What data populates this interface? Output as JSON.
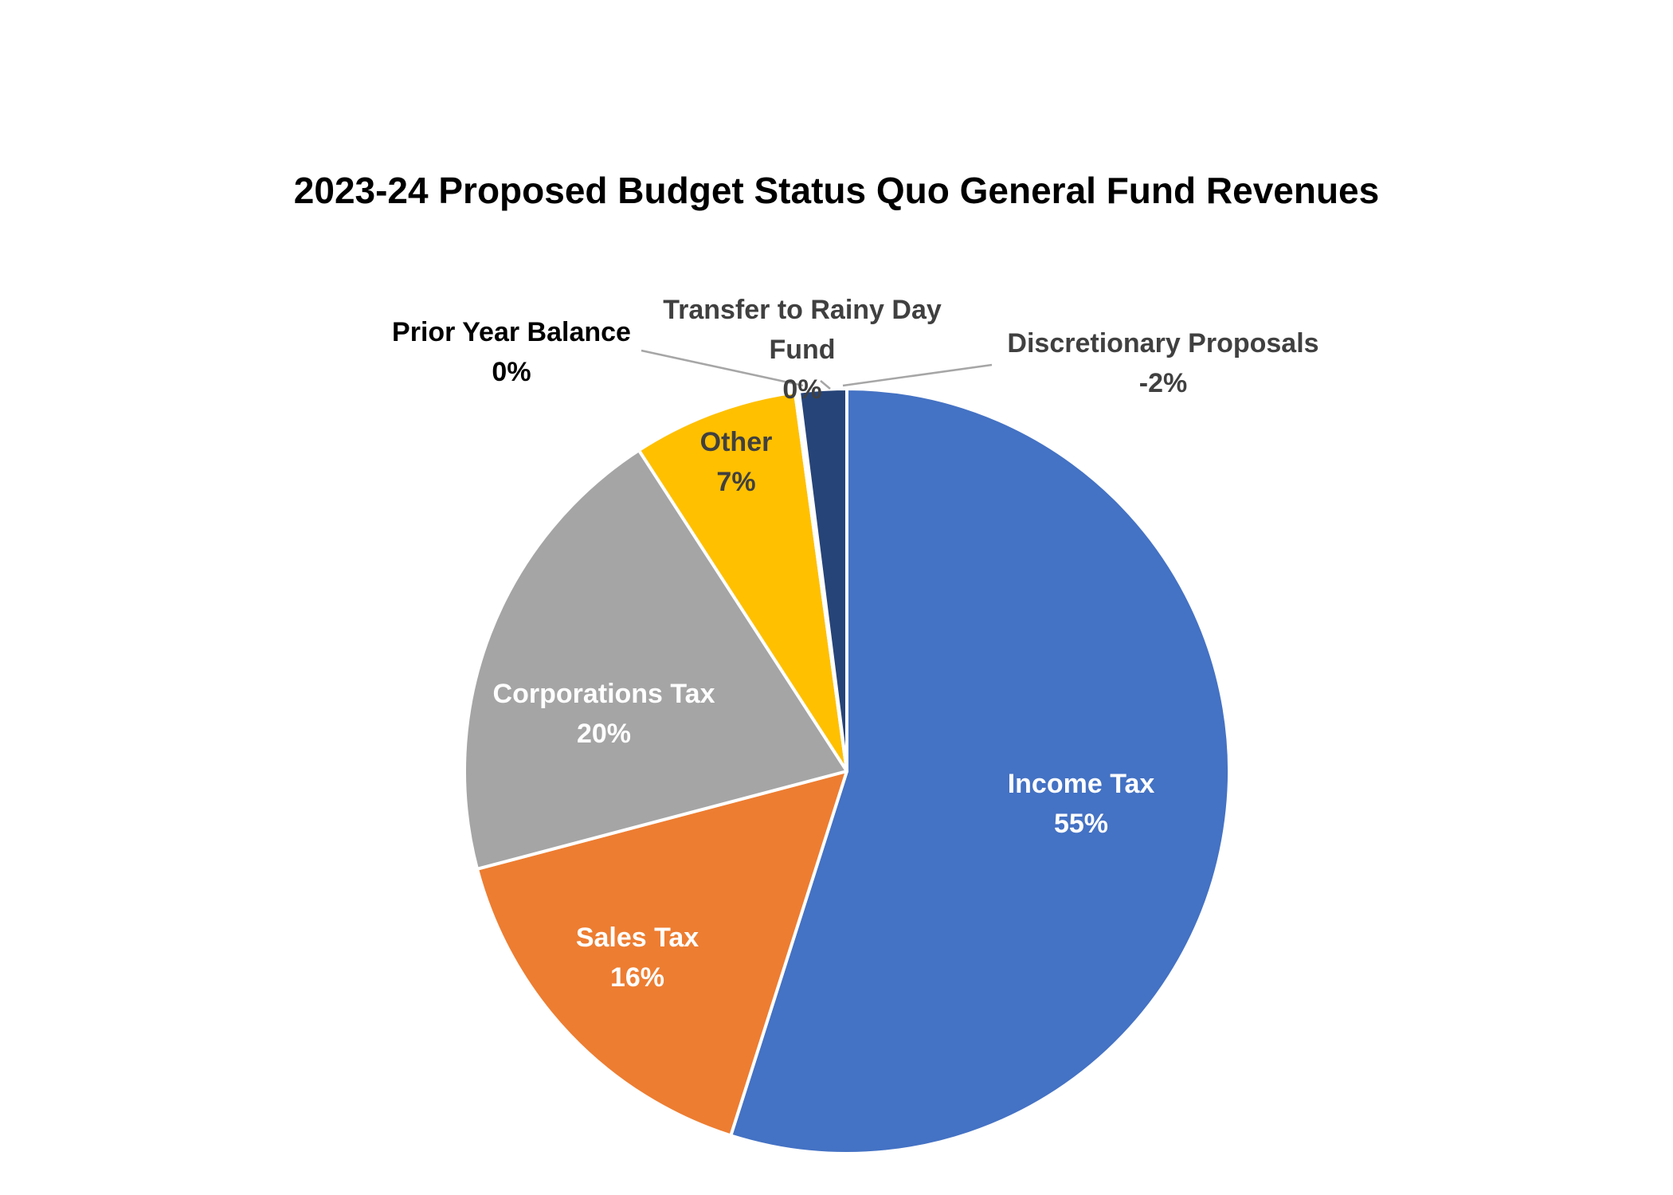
{
  "chart_data": {
    "type": "pie",
    "title": "2023-24 Proposed Budget Status Quo General Fund Revenues",
    "slices": [
      {
        "name": "Income Tax",
        "value": 55,
        "label": "55%",
        "color": "#4472C4",
        "text_color": "#ffffff"
      },
      {
        "name": "Sales Tax",
        "value": 16,
        "label": "16%",
        "color": "#ED7D31",
        "text_color": "#ffffff"
      },
      {
        "name": "Corporations Tax",
        "value": 20,
        "label": "20%",
        "color": "#A5A5A5",
        "text_color": "#ffffff"
      },
      {
        "name": "Other",
        "value": 7,
        "label": "7%",
        "color": "#FFC000",
        "text_color": "#404040"
      },
      {
        "name": "Prior Year Balance",
        "value": 0,
        "label": "0%",
        "color": "#5B9BD5",
        "text_color": "#000000"
      },
      {
        "name": "Transfer to Rainy Day Fund",
        "name_lines": [
          "Transfer to Rainy Day",
          "Fund"
        ],
        "value": 0,
        "label": "0%",
        "color": "#70AD47",
        "text_color": "#404040"
      },
      {
        "name": "Discretionary Proposals",
        "value": -2,
        "label": "-2%",
        "color": "#264478",
        "text_color": "#404040"
      }
    ],
    "legend": "none",
    "data_labels": "category name and percentage"
  }
}
